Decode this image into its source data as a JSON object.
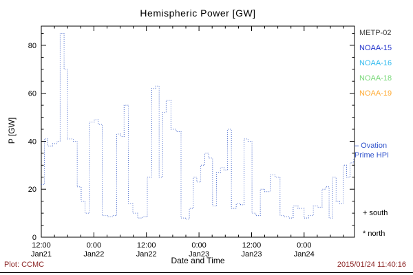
{
  "title": "Hemispheric Power [GW]",
  "axes": {
    "ylabel": "P [GW]",
    "xlabel": "Date and Time"
  },
  "legend": {
    "satellites": [
      {
        "label": "METP-02",
        "color": "#3b3b3b"
      },
      {
        "label": "NOAA-15",
        "color": "#2233cc"
      },
      {
        "label": "NOAA-16",
        "color": "#33bbee"
      },
      {
        "label": "NOAA-18",
        "color": "#77d877"
      },
      {
        "label": "NOAA-19",
        "color": "#ffaa33"
      }
    ],
    "model_line_label": "– Ovation\nPrime HPI",
    "model_line_color": "#3355cc",
    "south_marker_label": "+ south",
    "north_marker_label": "* north",
    "marker_color": "#000000"
  },
  "footer": {
    "credit": "Plot: CCMC",
    "timestamp": "2015/01/24 11:40:16",
    "color": "#8b2323"
  },
  "chart_data": {
    "type": "line",
    "style": "dotted-step",
    "title": "Hemispheric Power [GW]",
    "xlabel": "Date and Time",
    "ylabel": "P [GW]",
    "legend_position": "right",
    "grid": false,
    "line_color": "#4466cc",
    "xlim": [
      0,
      71.5
    ],
    "ylim": [
      0,
      88
    ],
    "x_unit": "hours since first tick (12:00 Jan21)",
    "x_ticks": [
      {
        "hour": 0,
        "time": "12:00",
        "date": "Jan21"
      },
      {
        "hour": 12,
        "time": "0:00",
        "date": "Jan22"
      },
      {
        "hour": 24,
        "time": "12:00",
        "date": "Jan22"
      },
      {
        "hour": 36,
        "time": "0:00",
        "date": "Jan23"
      },
      {
        "hour": 48,
        "time": "12:00",
        "date": "Jan23"
      },
      {
        "hour": 60,
        "time": "0:00",
        "date": "Jan24"
      }
    ],
    "y_ticks": [
      0,
      20,
      40,
      60,
      80
    ],
    "x_minor_step_hours": 3,
    "y_minor_step": 5,
    "x": [
      0,
      0.7,
      1.5,
      2.6,
      3.6,
      4.3,
      5.2,
      6.0,
      7.3,
      8.2,
      9.1,
      10.0,
      11.0,
      12.1,
      13.0,
      13.9,
      15.1,
      16.2,
      17.2,
      18.1,
      18.9,
      19.9,
      20.9,
      22.0,
      23.1,
      24.2,
      25.2,
      26.1,
      26.9,
      27.7,
      28.5,
      29.6,
      30.8,
      31.9,
      32.9,
      33.8,
      34.7,
      35.5,
      36.4,
      37.3,
      38.2,
      39.1,
      40.0,
      40.9,
      41.7,
      42.5,
      43.4,
      44.5,
      45.5,
      46.3,
      47.2,
      48.1,
      49.0,
      50.0,
      51.0,
      52.3,
      53.4,
      54.5,
      55.5,
      56.5,
      57.5,
      58.6,
      60.0,
      61.0,
      62.1,
      63.1,
      64.1,
      64.9,
      65.7,
      66.5,
      67.3,
      68.1,
      68.9,
      69.7,
      70.5,
      71.3
    ],
    "values": [
      22,
      41,
      38,
      39,
      40,
      85,
      70,
      41,
      40,
      21,
      15,
      10,
      48,
      49,
      47,
      9,
      8.5,
      9,
      43,
      42,
      55,
      14,
      10,
      8,
      8.5,
      25,
      62,
      63,
      25,
      52,
      57,
      45,
      44,
      8,
      7.5,
      12,
      25,
      23,
      30,
      35,
      33,
      13,
      27,
      29,
      28,
      45,
      12,
      14,
      13.5,
      41,
      40,
      10,
      9,
      20,
      19,
      26,
      25,
      9,
      8.5,
      8,
      13,
      12,
      8,
      9,
      13,
      12.5,
      20,
      21,
      8,
      25,
      15,
      14,
      30,
      25,
      31,
      33
    ]
  }
}
